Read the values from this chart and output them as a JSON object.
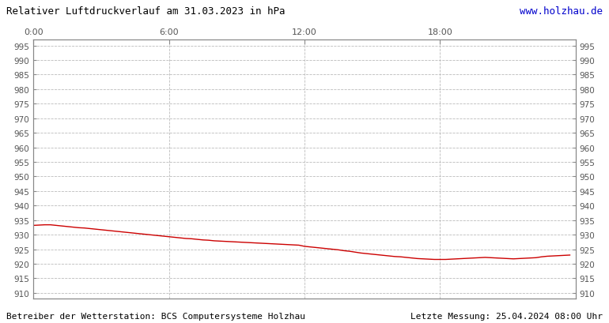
{
  "title_left": "Relativer Luftdruckverlauf am 31.03.2023 in hPa",
  "title_right": "www.holzhau.de",
  "footer_left": "Betreiber der Wetterstation: BCS Computersysteme Holzhau",
  "footer_right": "Letzte Messung: 25.04.2024 08:00 Uhr",
  "xlim": [
    0,
    24
  ],
  "ylim": [
    908,
    997
  ],
  "ytick_start": 910,
  "ytick_end": 995,
  "ytick_step": 5,
  "xticks": [
    0,
    6,
    12,
    18
  ],
  "xtick_labels": [
    "0:00",
    "6:00",
    "12:00",
    "18:00"
  ],
  "line_color": "#cc0000",
  "grid_color": "#bbbbbb",
  "background_color": "#ffffff",
  "plot_bg_color": "#ffffff",
  "title_color": "#000000",
  "url_color": "#0000cc",
  "footer_color": "#000000",
  "x_data": [
    0.0,
    0.25,
    0.5,
    0.75,
    1.0,
    1.25,
    1.5,
    1.75,
    2.0,
    2.25,
    2.5,
    2.75,
    3.0,
    3.25,
    3.5,
    3.75,
    4.0,
    4.25,
    4.5,
    4.75,
    5.0,
    5.25,
    5.5,
    5.75,
    6.0,
    6.25,
    6.5,
    6.75,
    7.0,
    7.25,
    7.5,
    7.75,
    8.0,
    8.25,
    8.5,
    8.75,
    9.0,
    9.25,
    9.5,
    9.75,
    10.0,
    10.25,
    10.5,
    10.75,
    11.0,
    11.25,
    11.5,
    11.75,
    12.0,
    12.25,
    12.5,
    12.75,
    13.0,
    13.25,
    13.5,
    13.75,
    14.0,
    14.25,
    14.5,
    14.75,
    15.0,
    15.25,
    15.5,
    15.75,
    16.0,
    16.25,
    16.5,
    16.75,
    17.0,
    17.25,
    17.5,
    17.75,
    18.0,
    18.25,
    18.5,
    18.75,
    19.0,
    19.25,
    19.5,
    19.75,
    20.0,
    20.25,
    20.5,
    20.75,
    21.0,
    21.25,
    21.5,
    21.75,
    22.0,
    22.25,
    22.5,
    22.75,
    23.0,
    23.25,
    23.5,
    23.75
  ],
  "y_data": [
    933.2,
    933.3,
    933.4,
    933.4,
    933.2,
    933.0,
    932.8,
    932.6,
    932.4,
    932.3,
    932.1,
    931.9,
    931.7,
    931.5,
    931.3,
    931.1,
    930.9,
    930.7,
    930.5,
    930.3,
    930.1,
    929.9,
    929.7,
    929.5,
    929.3,
    929.1,
    928.9,
    928.7,
    928.6,
    928.4,
    928.2,
    928.1,
    927.9,
    927.8,
    927.7,
    927.6,
    927.5,
    927.4,
    927.3,
    927.2,
    927.1,
    927.0,
    926.9,
    926.8,
    926.7,
    926.6,
    926.5,
    926.4,
    926.0,
    925.8,
    925.6,
    925.4,
    925.2,
    925.0,
    924.8,
    924.5,
    924.3,
    924.0,
    923.7,
    923.5,
    923.3,
    923.1,
    922.9,
    922.7,
    922.5,
    922.4,
    922.2,
    922.0,
    921.8,
    921.7,
    921.6,
    921.5,
    921.5,
    921.5,
    921.6,
    921.7,
    921.8,
    921.9,
    922.0,
    922.1,
    922.2,
    922.1,
    922.0,
    921.9,
    921.8,
    921.7,
    921.8,
    921.9,
    922.0,
    922.1,
    922.4,
    922.6,
    922.7,
    922.8,
    922.9,
    923.0
  ]
}
